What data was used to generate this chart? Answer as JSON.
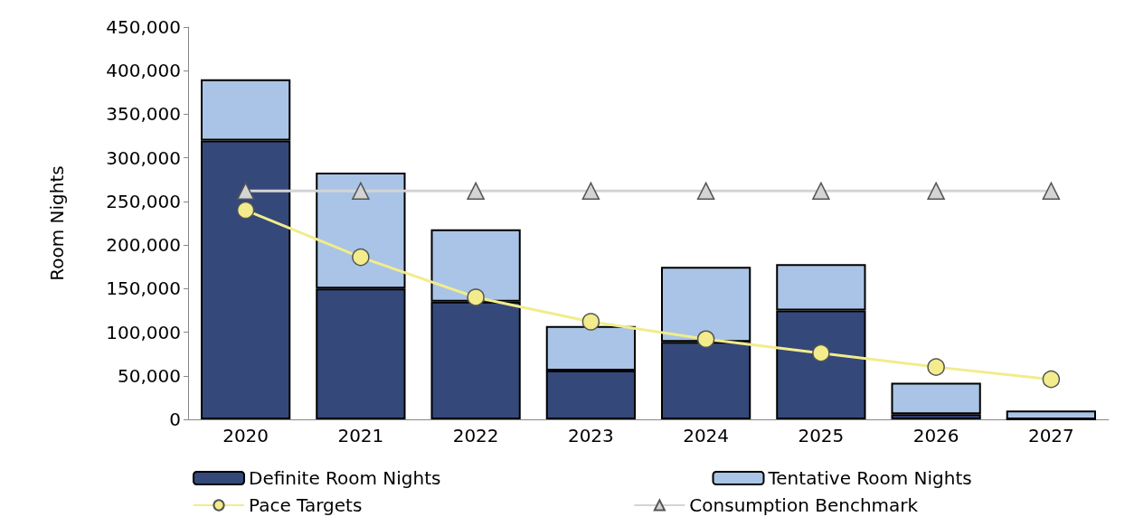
{
  "chart_data": {
    "type": "bar",
    "stacked": true,
    "ylabel": "Room Nights",
    "categories": [
      "2020",
      "2021",
      "2022",
      "2023",
      "2024",
      "2025",
      "2026",
      "2027"
    ],
    "series": [
      {
        "name": "Definite Room Nights",
        "color": "#34487a",
        "values": [
          320000,
          150000,
          135000,
          56000,
          89000,
          125000,
          6000,
          0
        ]
      },
      {
        "name": "Tentative Room Nights",
        "color": "#a9c4e6",
        "values": [
          70000,
          133000,
          83000,
          51000,
          86000,
          53000,
          36000,
          10000
        ]
      },
      {
        "name": "Pace Targets",
        "type": "line",
        "color": "#f2ec8c",
        "marker": "circle",
        "values": [
          240000,
          186000,
          140000,
          112000,
          92000,
          76000,
          60000,
          46000
        ]
      },
      {
        "name": "Consumption Benchmark",
        "type": "line",
        "color": "#d4d4d4",
        "marker": "triangle",
        "values": [
          262000,
          262000,
          262000,
          262000,
          262000,
          262000,
          262000,
          262000
        ]
      }
    ],
    "ylim": [
      0,
      450000
    ],
    "yticks": [
      0,
      {
        "value": 50000,
        "label": "50,000"
      },
      {
        "value": 100000,
        "label": "100,000"
      },
      {
        "value": 150000,
        "label": "150,000"
      },
      {
        "value": 200000,
        "label": "200,000"
      },
      {
        "value": 250000,
        "label": "250,000"
      },
      {
        "value": 300000,
        "label": "300,000"
      },
      {
        "value": 350000,
        "label": "350,000"
      },
      {
        "value": 400000,
        "label": "400,000"
      },
      {
        "value": 450000,
        "label": "450,000"
      }
    ],
    "grid": false,
    "legend": "bottom"
  }
}
